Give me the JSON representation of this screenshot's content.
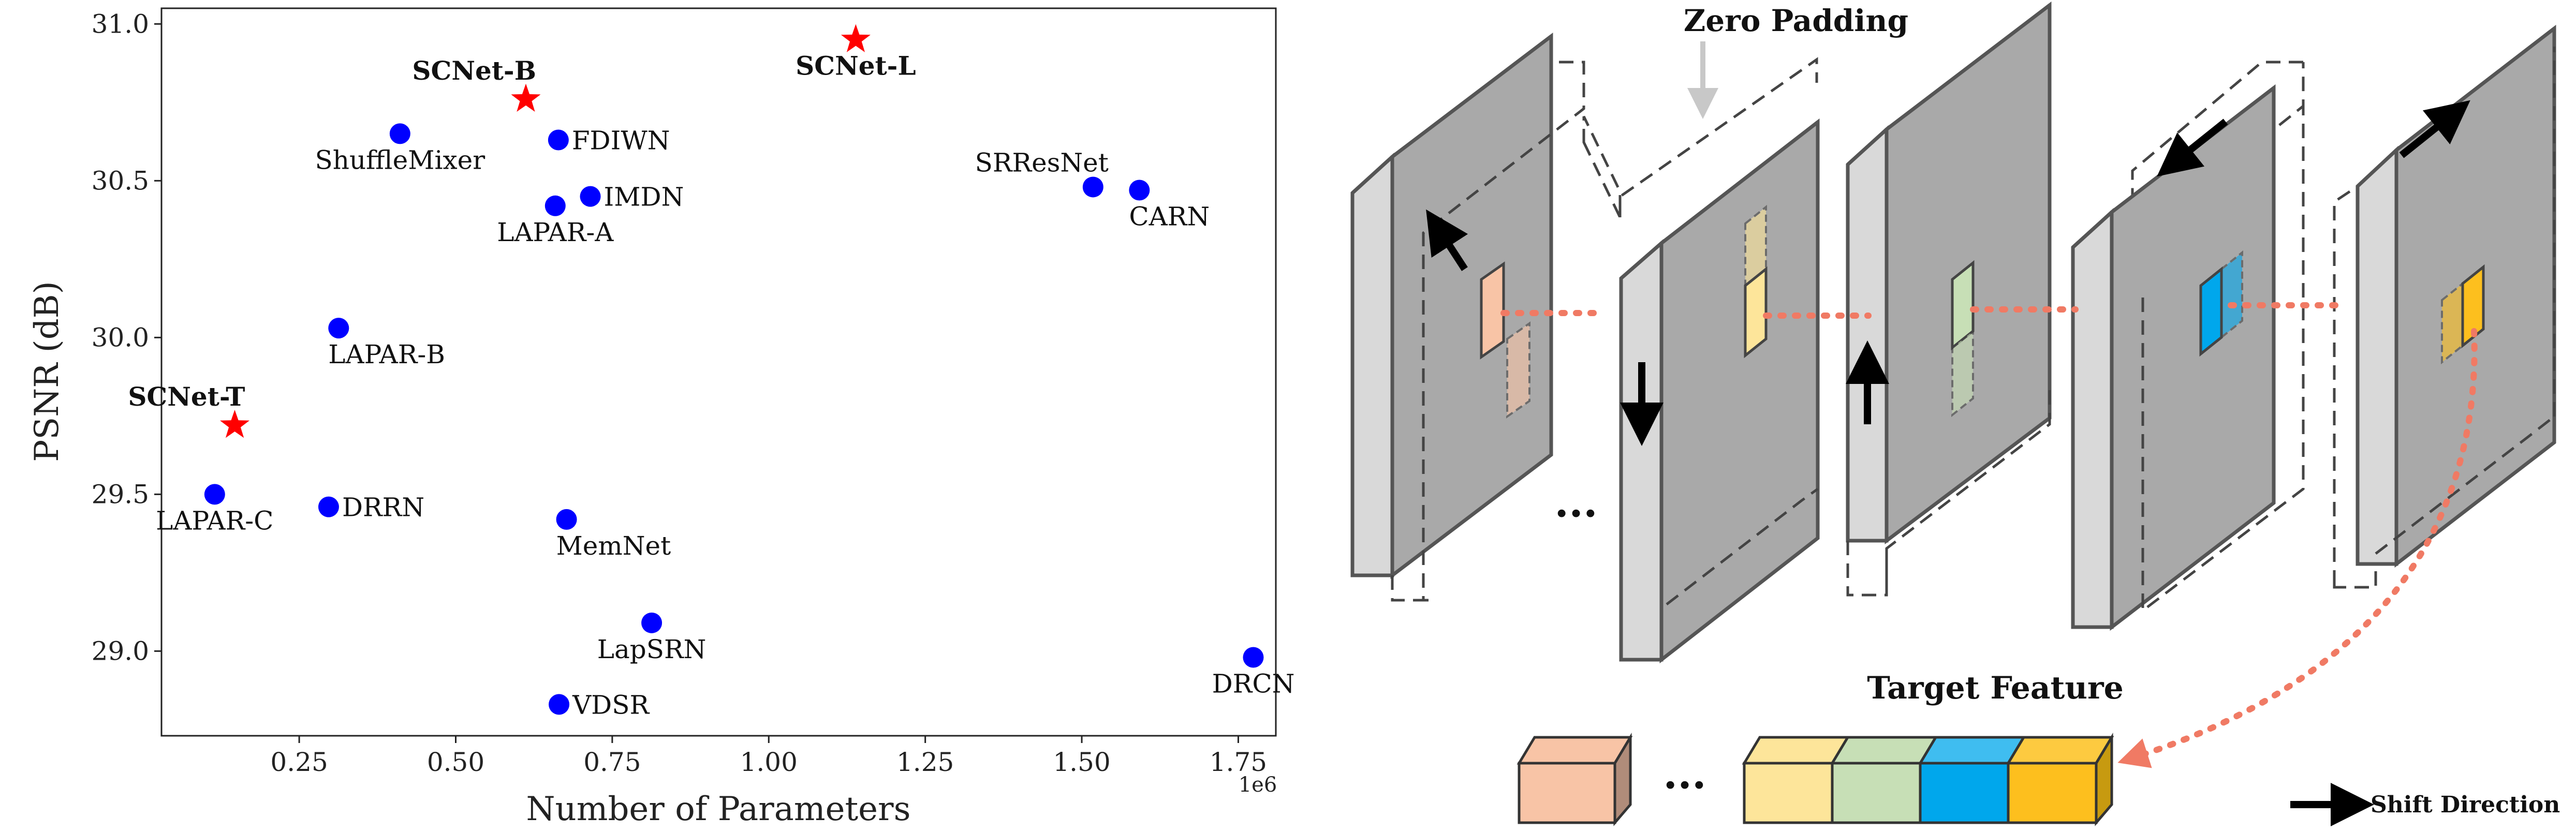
{
  "chart_data": {
    "type": "scatter",
    "xlabel": "Number of Parameters",
    "ylabel": "PSNR (dB)",
    "x_scale_label": "1e6",
    "xlim": [
      0.03,
      1.81
    ],
    "ylim": [
      28.73,
      31.05
    ],
    "x_ticks": [
      0.25,
      0.5,
      0.75,
      1.0,
      1.25,
      1.5,
      1.75
    ],
    "x_tick_labels": [
      "0.25",
      "0.50",
      "0.75",
      "1.00",
      "1.25",
      "1.50",
      "1.75"
    ],
    "y_ticks": [
      29.0,
      29.5,
      30.0,
      30.5,
      31.0
    ],
    "y_tick_labels": [
      "29.0",
      "29.5",
      "30.0",
      "30.5",
      "31.0"
    ],
    "grid": false,
    "points": [
      {
        "label": "ShuffleMixer",
        "x": 0.411,
        "y": 30.65,
        "marker": "circle",
        "color": "#0000ff",
        "bold": false,
        "lpos": "below-center"
      },
      {
        "label": "FDIWN",
        "x": 0.664,
        "y": 30.63,
        "marker": "circle",
        "color": "#0000ff",
        "bold": false,
        "lpos": "right"
      },
      {
        "label": "IMDN",
        "x": 0.715,
        "y": 30.45,
        "marker": "circle",
        "color": "#0000ff",
        "bold": false,
        "lpos": "right"
      },
      {
        "label": "LAPAR-A",
        "x": 0.659,
        "y": 30.42,
        "marker": "circle",
        "color": "#0000ff",
        "bold": false,
        "lpos": "below-center"
      },
      {
        "label": "SRResNet",
        "x": 1.518,
        "y": 30.48,
        "marker": "circle",
        "color": "#0000ff",
        "bold": false,
        "lpos": "above-left"
      },
      {
        "label": "CARN",
        "x": 1.592,
        "y": 30.47,
        "marker": "circle",
        "color": "#0000ff",
        "bold": false,
        "lpos": "below-right"
      },
      {
        "label": "LAPAR-B",
        "x": 0.313,
        "y": 30.03,
        "marker": "circle",
        "color": "#0000ff",
        "bold": false,
        "lpos": "below-right"
      },
      {
        "label": "LAPAR-C",
        "x": 0.115,
        "y": 29.5,
        "marker": "circle",
        "color": "#0000ff",
        "bold": false,
        "lpos": "below-center"
      },
      {
        "label": "DRRN",
        "x": 0.297,
        "y": 29.46,
        "marker": "circle",
        "color": "#0000ff",
        "bold": false,
        "lpos": "right"
      },
      {
        "label": "MemNet",
        "x": 0.677,
        "y": 29.42,
        "marker": "circle",
        "color": "#0000ff",
        "bold": false,
        "lpos": "below-right"
      },
      {
        "label": "LapSRN",
        "x": 0.813,
        "y": 29.09,
        "marker": "circle",
        "color": "#0000ff",
        "bold": false,
        "lpos": "below-center"
      },
      {
        "label": "VDSR",
        "x": 0.665,
        "y": 28.83,
        "marker": "circle",
        "color": "#0000ff",
        "bold": false,
        "lpos": "right"
      },
      {
        "label": "DRCN",
        "x": 1.774,
        "y": 28.98,
        "marker": "circle",
        "color": "#0000ff",
        "bold": false,
        "lpos": "below-center"
      },
      {
        "label": "SCNet-B",
        "x": 0.612,
        "y": 30.76,
        "marker": "star",
        "color": "#ff0000",
        "bold": true,
        "lpos": "above-left"
      },
      {
        "label": "SCNet-L",
        "x": 1.139,
        "y": 30.95,
        "marker": "star",
        "color": "#ff0000",
        "bold": true,
        "lpos": "below-center"
      },
      {
        "label": "SCNet-T",
        "x": 0.147,
        "y": 29.72,
        "marker": "star",
        "color": "#ff0000",
        "bold": true,
        "lpos": "above-left"
      }
    ]
  },
  "diagram": {
    "zero_padding_label": "Zero Padding",
    "target_feature_label": "Target Feature",
    "ellipsis": "···",
    "legend_label": "Shift Direction",
    "colors": {
      "peach": "#f8c4a6",
      "light_yellow": "#fde59a",
      "light_green": "#c7dfb6",
      "blue": "#00a7ec",
      "gold": "#fdbf1e",
      "dotted_line": "#f07a64",
      "slab_face": "#a9a9a9",
      "slab_side": "#d9d9d9",
      "slab_top": "#e4e4e4",
      "arrow_gray": "#c8c8c8"
    }
  }
}
